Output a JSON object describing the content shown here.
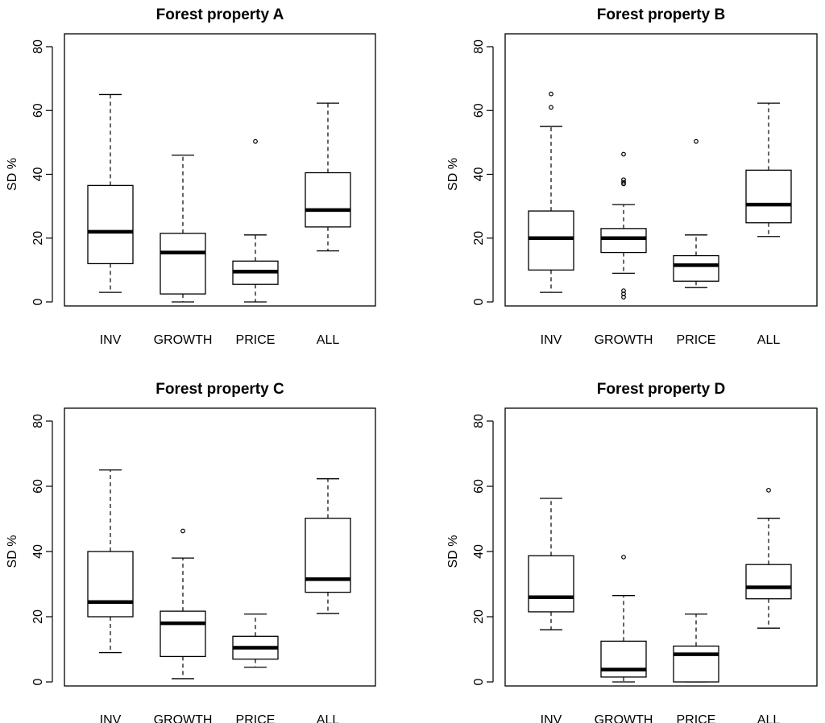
{
  "figure": {
    "description_free": true
  },
  "chart_data": [
    {
      "type": "box",
      "title": "Forest property A",
      "ylabel": "SD %",
      "xlabel": "",
      "ylim": [
        0,
        80
      ],
      "yticks": [
        0,
        20,
        40,
        60,
        80
      ],
      "categories": [
        "INV",
        "GROWTH",
        "PRICE",
        "ALL"
      ],
      "boxes": [
        {
          "whisker_low": 3,
          "q1": 12,
          "median": 22,
          "q3": 36.5,
          "whisker_high": 65,
          "outliers": []
        },
        {
          "whisker_low": 0,
          "q1": 2.5,
          "median": 15.5,
          "q3": 21.5,
          "whisker_high": 46,
          "outliers": []
        },
        {
          "whisker_low": 0,
          "q1": 5.5,
          "median": 9.5,
          "q3": 12.8,
          "whisker_high": 21,
          "outliers": [
            50.3
          ]
        },
        {
          "whisker_low": 16,
          "q1": 23.5,
          "median": 28.8,
          "q3": 40.5,
          "whisker_high": 62.3,
          "outliers": []
        }
      ]
    },
    {
      "type": "box",
      "title": "Forest property B",
      "ylabel": "SD %",
      "xlabel": "",
      "ylim": [
        0,
        80
      ],
      "yticks": [
        0,
        20,
        40,
        60,
        80
      ],
      "categories": [
        "INV",
        "GROWTH",
        "PRICE",
        "ALL"
      ],
      "boxes": [
        {
          "whisker_low": 3,
          "q1": 10,
          "median": 20,
          "q3": 28.5,
          "whisker_high": 55,
          "outliers": [
            61,
            65.2
          ]
        },
        {
          "whisker_low": 9,
          "q1": 15.5,
          "median": 20,
          "q3": 23,
          "whisker_high": 30.5,
          "outliers": [
            1.5,
            2.5,
            3.5,
            37,
            37.5,
            38.3,
            46.3
          ]
        },
        {
          "whisker_low": 4.5,
          "q1": 6.5,
          "median": 11.5,
          "q3": 14.5,
          "whisker_high": 21,
          "outliers": [
            50.3
          ]
        },
        {
          "whisker_low": 20.5,
          "q1": 24.8,
          "median": 30.5,
          "q3": 41.3,
          "whisker_high": 62.3,
          "outliers": []
        }
      ]
    },
    {
      "type": "box",
      "title": "Forest property C",
      "ylabel": "SD %",
      "xlabel": "",
      "ylim": [
        0,
        80
      ],
      "yticks": [
        0,
        20,
        40,
        60,
        80
      ],
      "categories": [
        "INV",
        "GROWTH",
        "PRICE",
        "ALL"
      ],
      "boxes": [
        {
          "whisker_low": 9,
          "q1": 20,
          "median": 24.5,
          "q3": 40,
          "whisker_high": 65,
          "outliers": []
        },
        {
          "whisker_low": 1,
          "q1": 7.8,
          "median": 18,
          "q3": 21.7,
          "whisker_high": 38,
          "outliers": [
            46.3
          ]
        },
        {
          "whisker_low": 4.5,
          "q1": 7,
          "median": 10.5,
          "q3": 14,
          "whisker_high": 20.8,
          "outliers": []
        },
        {
          "whisker_low": 21,
          "q1": 27.5,
          "median": 31.5,
          "q3": 50.2,
          "whisker_high": 62.3,
          "outliers": []
        }
      ]
    },
    {
      "type": "box",
      "title": "Forest property D",
      "ylabel": "SD %",
      "xlabel": "",
      "ylim": [
        0,
        80
      ],
      "yticks": [
        0,
        20,
        40,
        60,
        80
      ],
      "categories": [
        "INV",
        "GROWTH",
        "PRICE",
        "ALL"
      ],
      "boxes": [
        {
          "whisker_low": 16,
          "q1": 21.5,
          "median": 26,
          "q3": 38.7,
          "whisker_high": 56.3,
          "outliers": []
        },
        {
          "whisker_low": 0,
          "q1": 1.5,
          "median": 3.8,
          "q3": 12.5,
          "whisker_high": 26.5,
          "outliers": [
            38.3
          ]
        },
        {
          "whisker_low": 0,
          "q1": 0,
          "median": 8.5,
          "q3": 11,
          "whisker_high": 20.8,
          "outliers": []
        },
        {
          "whisker_low": 16.5,
          "q1": 25.5,
          "median": 29,
          "q3": 36,
          "whisker_high": 50.2,
          "outliers": [
            58.8
          ]
        }
      ]
    }
  ]
}
